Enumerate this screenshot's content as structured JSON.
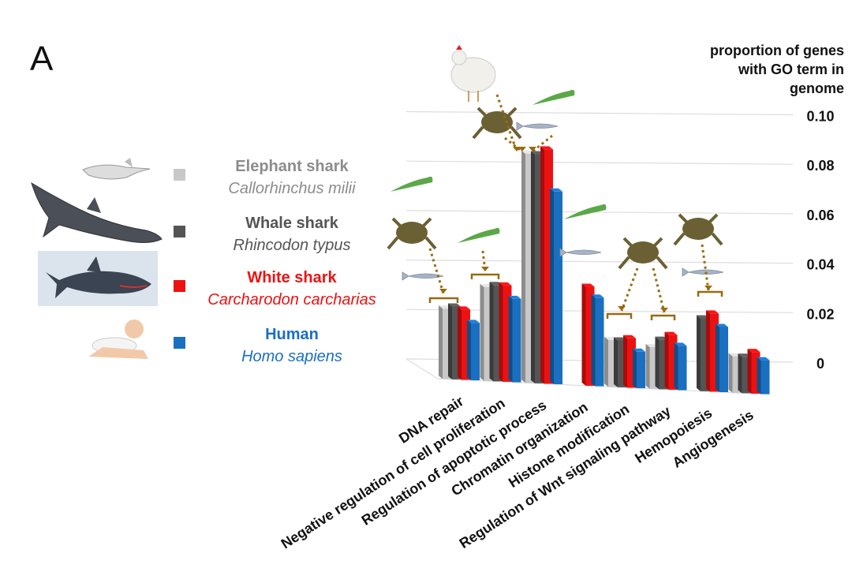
{
  "panel_label": "A",
  "axis_title_lines": [
    "proportion of genes",
    "with GO term in",
    "genome"
  ],
  "legend": [
    {
      "common": "Elephant shark",
      "scientific": "Callorhinchus milii",
      "color": "#c8c8c8",
      "text_color": "#8c8c8c",
      "icon": "elephant-shark-icon"
    },
    {
      "common": "Whale shark",
      "scientific": "Rhincodon typus",
      "color": "#555555",
      "text_color": "#555555",
      "icon": "whale-shark-icon"
    },
    {
      "common": "White shark",
      "scientific": "Carcharodon carcharias",
      "color": "#ee1111",
      "text_color": "#ee1111",
      "icon": "white-shark-icon"
    },
    {
      "common": "Human",
      "scientific": "Homo sapiens",
      "color": "#1a6fc0",
      "text_color": "#1a6fc0",
      "icon": "baby-icon"
    }
  ],
  "chart_data": {
    "type": "bar",
    "title": "",
    "xlabel": "",
    "ylabel": "proportion of genes with GO term in genome",
    "ylim": [
      0,
      0.1
    ],
    "yticks": [
      "0",
      "0.02",
      "0.04",
      "0.06",
      "0.08",
      "0.10"
    ],
    "grid": true,
    "legend_position": "left",
    "categories": [
      "DNA repair",
      "Negative regulation of cell proliferation",
      "Regulation of apoptotic process",
      "Chromatin organization",
      "Histone modification",
      "Regulation of Wnt signaling pathway",
      "Hemopoiesis",
      "Angiogenesis"
    ],
    "series": [
      {
        "name": "Elephant shark",
        "values": [
          0.027,
          0.036,
          0.088,
          null,
          0.018,
          0.016,
          null,
          0.014
        ]
      },
      {
        "name": "Whale shark",
        "values": [
          0.028,
          0.037,
          0.088,
          null,
          0.018,
          0.019,
          0.028,
          0.014
        ]
      },
      {
        "name": "White shark",
        "values": [
          0.027,
          0.037,
          0.09,
          0.038,
          0.019,
          0.021,
          0.03,
          0.016
        ]
      },
      {
        "name": "Human",
        "values": [
          0.022,
          0.032,
          0.074,
          0.034,
          0.014,
          0.017,
          0.025,
          0.013
        ]
      }
    ]
  }
}
